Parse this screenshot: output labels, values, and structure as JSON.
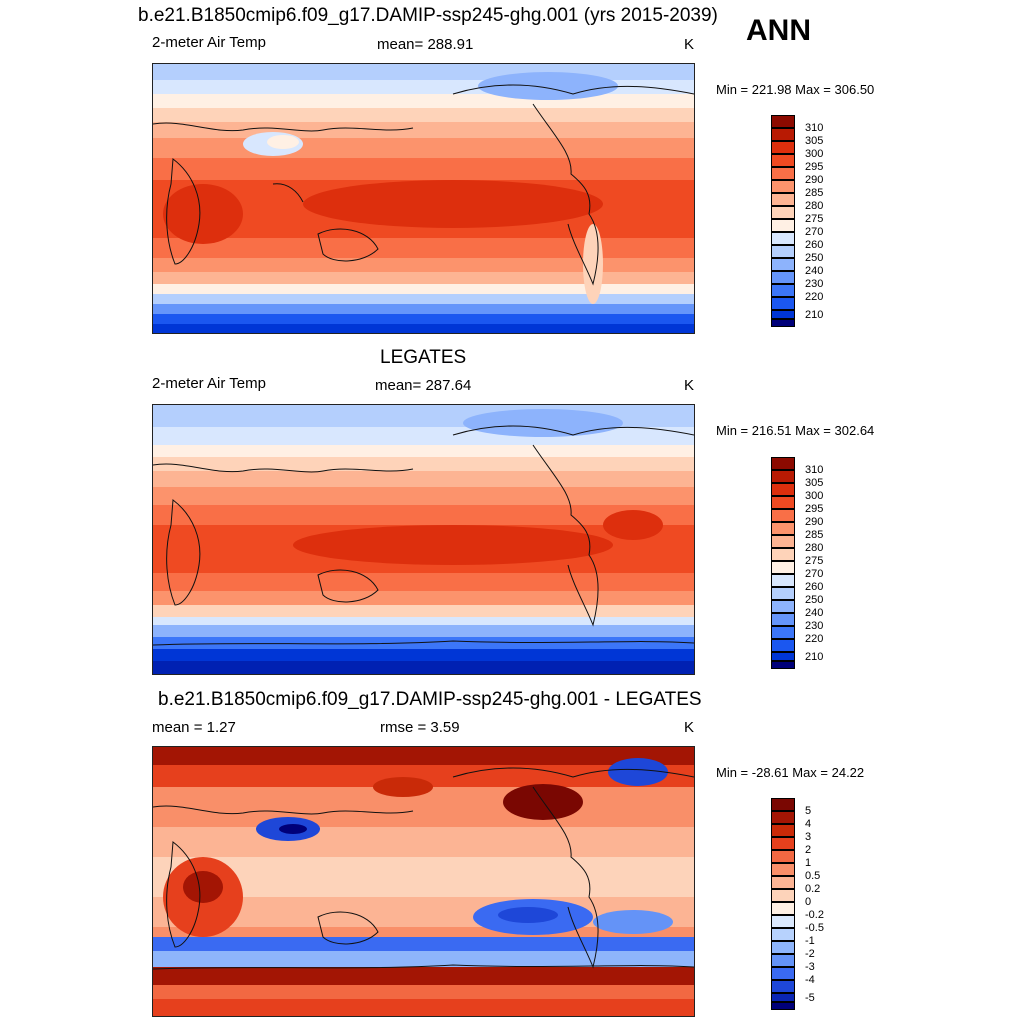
{
  "header": {
    "main_title": "b.e21.B1850cmip6.f09_g17.DAMIP-ssp245-ghg.001 (yrs 2015-2039)",
    "season": "ANN"
  },
  "colors": {
    "abs": [
      "#000079",
      "#0021b2",
      "#0036d6",
      "#1b57f0",
      "#3c76f8",
      "#6595fa",
      "#8db3fc",
      "#b4cffd",
      "#d8e7fe",
      "#fff0e4",
      "#fed3b9",
      "#fdb493",
      "#fc936c",
      "#f96f47",
      "#ef4a22",
      "#dd2f0d",
      "#b81a03",
      "#8c0a00"
    ],
    "diff": [
      "#000079",
      "#0a26b5",
      "#1e47d8",
      "#3a6af2",
      "#6493f7",
      "#8eb5fb",
      "#b7d2fd",
      "#dbe9fe",
      "#fff0e4",
      "#fdd3ba",
      "#fcb494",
      "#f98f69",
      "#f26842",
      "#e6401d",
      "#c92a08",
      "#a31504",
      "#7a0702"
    ]
  },
  "panels": [
    {
      "title": "",
      "left_label": "2-meter Air Temp",
      "center_label": "mean= 288.91",
      "units": "K",
      "minmax": "Min = 221.98 Max = 306.50",
      "colorbar_labels": [
        "310",
        "305",
        "300",
        "295",
        "290",
        "285",
        "280",
        "275",
        "270",
        "260",
        "250",
        "240",
        "230",
        "220",
        "210"
      ]
    },
    {
      "title": "LEGATES",
      "left_label": "2-meter Air Temp",
      "center_label": "mean= 287.64",
      "units": "K",
      "minmax": "Min = 216.51 Max = 302.64",
      "colorbar_labels": [
        "310",
        "305",
        "300",
        "295",
        "290",
        "285",
        "280",
        "275",
        "270",
        "260",
        "250",
        "240",
        "230",
        "220",
        "210"
      ]
    },
    {
      "title": "b.e21.B1850cmip6.f09_g17.DAMIP-ssp245-ghg.001 - LEGATES",
      "left_label": "mean =   1.27",
      "center_label": "rmse =   3.59",
      "units": "K",
      "minmax": "Min = -28.61 Max =  24.22",
      "colorbar_labels": [
        "5",
        "4",
        "3",
        "2",
        "1",
        "0.5",
        "0.2",
        "0",
        "-0.2",
        "-0.5",
        "-1",
        "-2",
        "-3",
        "-4",
        "-5"
      ]
    }
  ]
}
